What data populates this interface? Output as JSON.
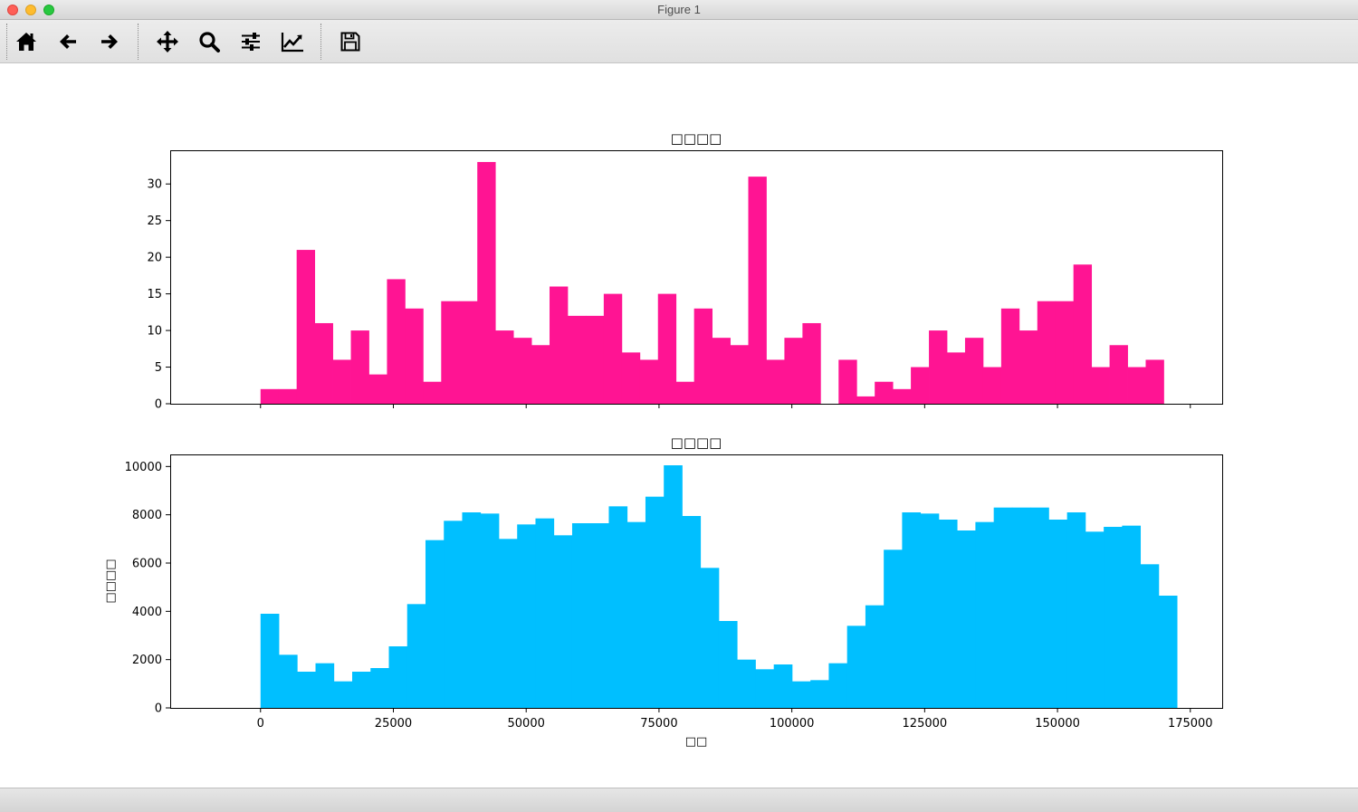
{
  "window": {
    "title": "Figure 1"
  },
  "toolbar": {
    "buttons": [
      {
        "name": "home-button",
        "icon": "home-icon"
      },
      {
        "name": "back-button",
        "icon": "arrow-left-icon"
      },
      {
        "name": "forward-button",
        "icon": "arrow-right-icon"
      },
      {
        "name": "pan-button",
        "icon": "move-icon"
      },
      {
        "name": "zoom-button",
        "icon": "magnifier-icon"
      },
      {
        "name": "configure-subplots-button",
        "icon": "sliders-icon"
      },
      {
        "name": "edit-axes-button",
        "icon": "line-chart-icon"
      },
      {
        "name": "save-button",
        "icon": "floppy-disk-icon"
      }
    ]
  },
  "chart_data": [
    {
      "type": "bar",
      "title": "□□□□",
      "xlabel": "",
      "ylabel": "",
      "color": "#ff1493",
      "bin_start": 0,
      "bin_width": 3400,
      "xlim": [
        -17000,
        181000
      ],
      "ylim": [
        0,
        34.6
      ],
      "xticks": [
        0,
        25000,
        50000,
        75000,
        100000,
        125000,
        150000,
        175000
      ],
      "xtick_labels_visible": false,
      "yticks": [
        0,
        5,
        10,
        15,
        20,
        25,
        30
      ],
      "values": [
        2,
        2,
        21,
        11,
        6,
        10,
        4,
        17,
        13,
        3,
        14,
        14,
        33,
        10,
        9,
        8,
        16,
        12,
        12,
        15,
        7,
        6,
        15,
        3,
        13,
        9,
        8,
        31,
        6,
        9,
        11,
        0,
        6,
        1,
        3,
        2,
        5,
        10,
        7,
        9,
        5,
        13,
        10,
        14,
        14,
        19,
        5,
        8,
        5,
        6
      ]
    },
    {
      "type": "bar",
      "title": "□□□□",
      "xlabel": "□□",
      "ylabel": "□□□□",
      "color": "#00bfff",
      "bin_start": 0,
      "bin_width": 3450,
      "xlim": [
        -17000,
        181000
      ],
      "ylim": [
        0,
        10500
      ],
      "xticks": [
        0,
        25000,
        50000,
        75000,
        100000,
        125000,
        150000,
        175000
      ],
      "xtick_labels_visible": true,
      "yticks": [
        0,
        2000,
        4000,
        6000,
        8000,
        10000
      ],
      "values": [
        3900,
        2200,
        1500,
        1850,
        1100,
        1500,
        1650,
        2550,
        4300,
        6950,
        7750,
        8100,
        8050,
        7000,
        7600,
        7850,
        7150,
        7650,
        7650,
        8350,
        7700,
        8750,
        10050,
        7950,
        5800,
        3600,
        2000,
        1600,
        1800,
        1100,
        1150,
        1850,
        3400,
        4250,
        6550,
        8100,
        8050,
        7800,
        7350,
        7700,
        8300,
        8300,
        8300,
        7800,
        8100,
        7300,
        7500,
        7550,
        5950,
        4650
      ]
    }
  ]
}
